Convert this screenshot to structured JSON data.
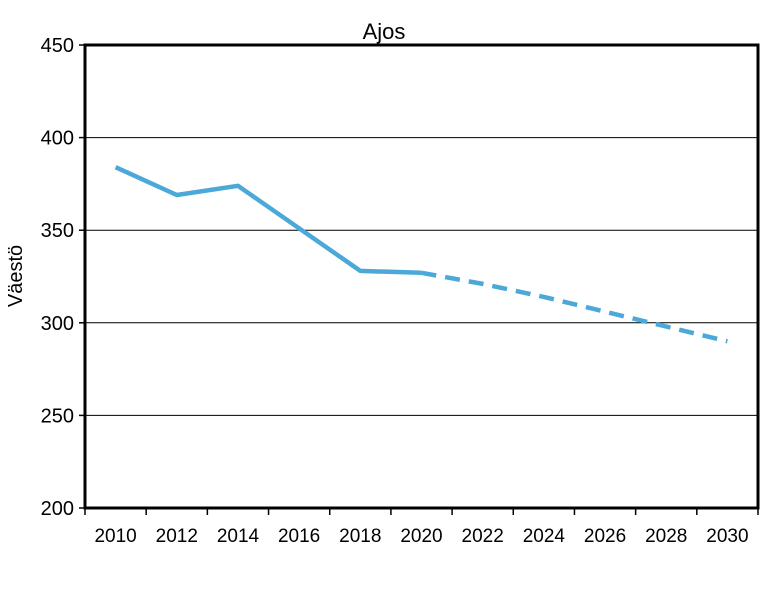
{
  "chart_data": {
    "type": "line",
    "title": "Ajos",
    "xlabel": "",
    "ylabel": "Väestö",
    "x": [
      2010,
      2012,
      2014,
      2016,
      2018,
      2020,
      2022,
      2024,
      2026,
      2028,
      2030
    ],
    "x_tick_labels": [
      "2010",
      "2012",
      "2014",
      "2016",
      "2018",
      "2020",
      "2022",
      "2024",
      "2026",
      "2028",
      "2030"
    ],
    "y_tick_labels": [
      "200",
      "250",
      "300",
      "350",
      "400",
      "450"
    ],
    "xlim": [
      2009,
      2031
    ],
    "ylim": [
      200,
      450
    ],
    "grid": true,
    "legend": "none",
    "series": [
      {
        "style": "solid",
        "color": "#4BA8D8",
        "points": [
          {
            "x": 2010,
            "y": 384
          },
          {
            "x": 2012,
            "y": 369
          },
          {
            "x": 2014,
            "y": 374
          },
          {
            "x": 2016,
            "y": 351
          },
          {
            "x": 2018,
            "y": 328
          },
          {
            "x": 2020,
            "y": 327
          }
        ]
      },
      {
        "style": "dashed",
        "color": "#4BA8D8",
        "points": [
          {
            "x": 2020,
            "y": 327
          },
          {
            "x": 2022,
            "y": 321
          },
          {
            "x": 2024,
            "y": 314
          },
          {
            "x": 2026,
            "y": 306
          },
          {
            "x": 2028,
            "y": 298
          },
          {
            "x": 2030,
            "y": 290
          }
        ]
      }
    ]
  }
}
